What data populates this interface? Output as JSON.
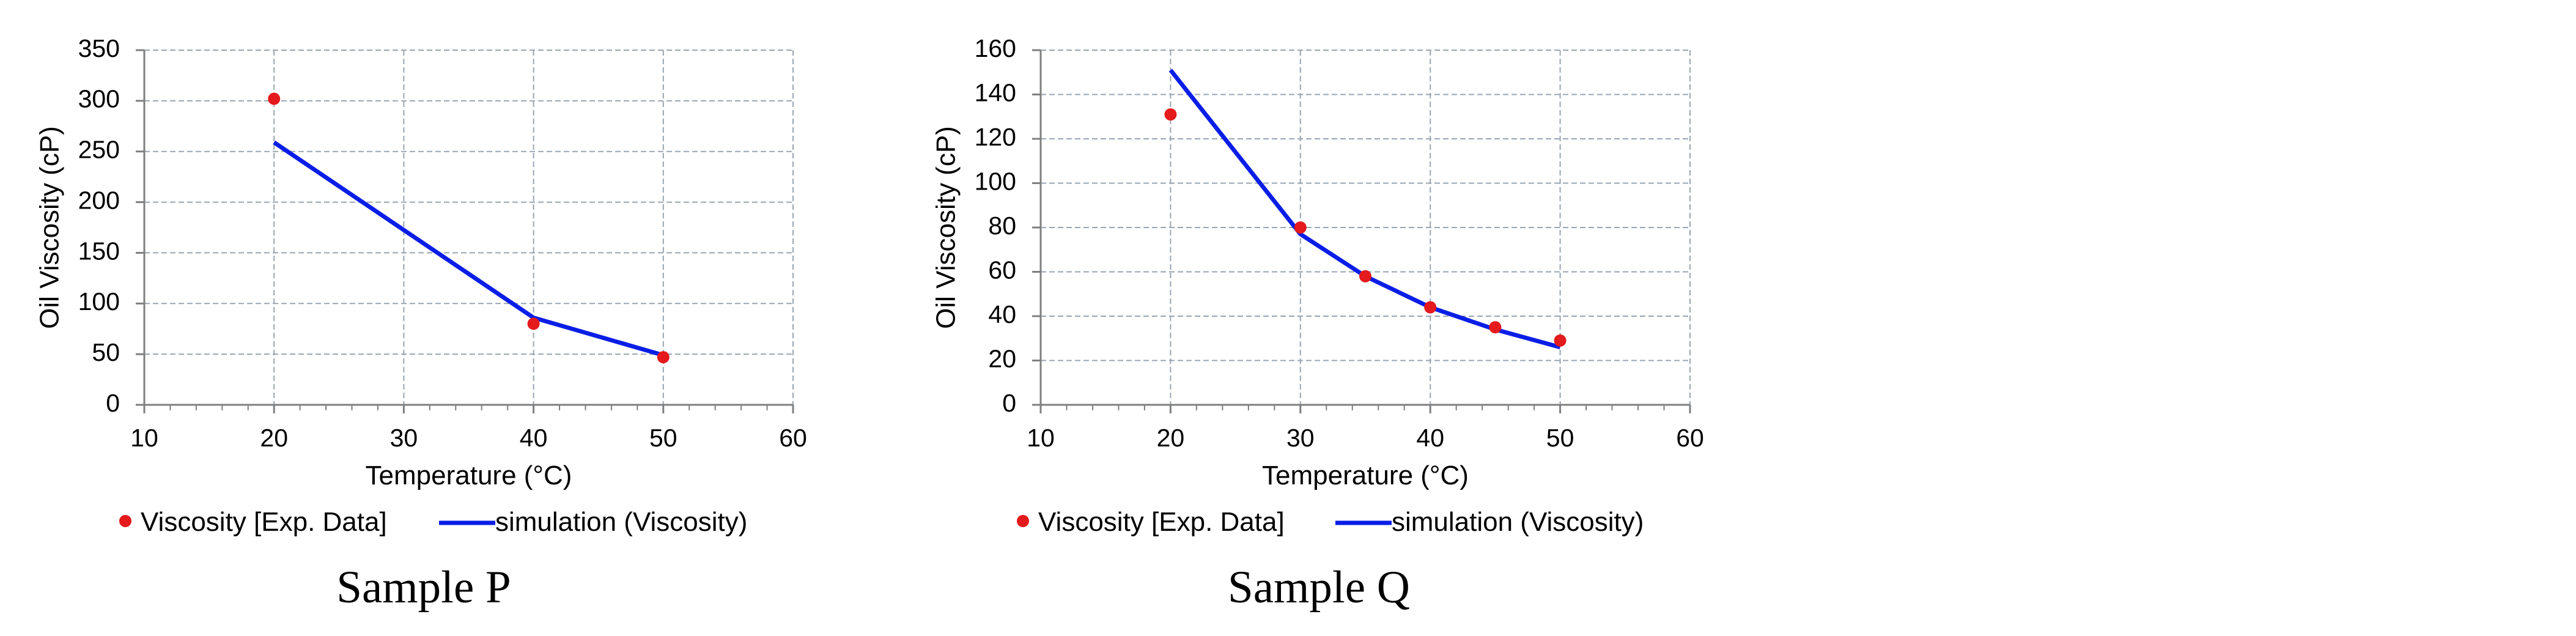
{
  "colors": {
    "experimental": "#e41a1c",
    "simulation": "#0a1ee6",
    "grid": "#9aa5b1",
    "axis": "#7f7f7f"
  },
  "chart_data": [
    {
      "type": "line",
      "caption": "Sample P",
      "xlabel": "Temperature (°C)",
      "ylabel": "Oil Viscosity (cP)",
      "xlim": [
        10,
        60
      ],
      "ylim": [
        0,
        350
      ],
      "xticks": [
        10,
        20,
        30,
        40,
        50,
        60
      ],
      "yticks": [
        0,
        50,
        100,
        150,
        200,
        250,
        300,
        350
      ],
      "grid": true,
      "legend_position": "bottom",
      "series": [
        {
          "name": "Viscosity [Exp. Data]",
          "kind": "scatter",
          "x": [
            20,
            40,
            50
          ],
          "y": [
            302,
            80,
            47
          ]
        },
        {
          "name": "simulation (Viscosity)",
          "kind": "line",
          "x": [
            20,
            40,
            50
          ],
          "y": [
            259,
            86,
            49
          ]
        }
      ]
    },
    {
      "type": "line",
      "caption": "Sample Q",
      "xlabel": "Temperature (°C)",
      "ylabel": "Oil Viscosity (cP)",
      "xlim": [
        10,
        60
      ],
      "ylim": [
        0,
        160
      ],
      "xticks": [
        10,
        20,
        30,
        40,
        50,
        60
      ],
      "yticks": [
        0,
        20,
        40,
        60,
        80,
        100,
        120,
        140,
        160
      ],
      "grid": true,
      "legend_position": "bottom",
      "series": [
        {
          "name": "Viscosity [Exp. Data]",
          "kind": "scatter",
          "x": [
            20,
            30,
            35,
            40,
            45,
            50
          ],
          "y": [
            131,
            80,
            58,
            44,
            35,
            29
          ]
        },
        {
          "name": "simulation (Viscosity)",
          "kind": "line",
          "x": [
            20,
            30,
            35,
            40,
            45,
            50
          ],
          "y": [
            151,
            77,
            58,
            44,
            34,
            26
          ]
        }
      ]
    }
  ]
}
